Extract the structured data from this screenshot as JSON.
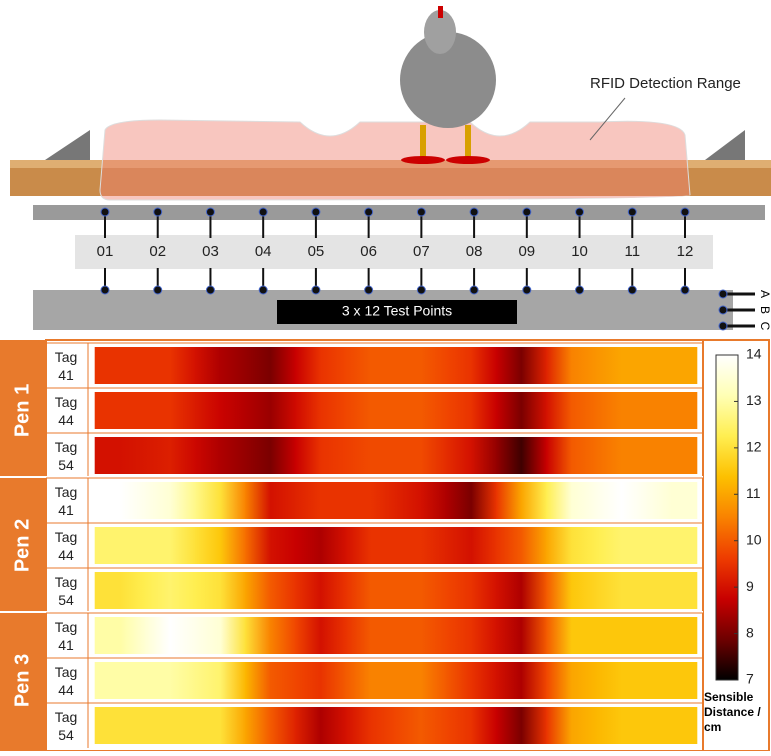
{
  "diagram": {
    "annotation": "RFID Detection Range",
    "caption": "3 x 12 Test Points",
    "rows": [
      "A",
      "B",
      "C"
    ]
  },
  "chart_data": {
    "type": "heatmap",
    "categories": [
      "01",
      "02",
      "03",
      "04",
      "05",
      "06",
      "07",
      "08",
      "09",
      "10",
      "11",
      "12"
    ],
    "groups": [
      {
        "name": "Pen 1",
        "rows": [
          {
            "name": "Tag 41",
            "values": [
              9.5,
              9.5,
              8.5,
              8,
              9.5,
              10,
              10,
              9.5,
              8,
              10.5,
              11,
              11
            ]
          },
          {
            "name": "Tag 44",
            "values": [
              9.5,
              9.5,
              8.8,
              8.3,
              9.5,
              10,
              10,
              9.5,
              8,
              10,
              10.5,
              10.5
            ]
          },
          {
            "name": "Tag 54",
            "values": [
              9,
              9.2,
              8.5,
              8,
              9.5,
              9.8,
              9.8,
              9,
              7.5,
              10,
              10.5,
              10.5
            ]
          }
        ]
      },
      {
        "name": "Pen 2",
        "rows": [
          {
            "name": "Tag 41",
            "values": [
              14,
              13.5,
              12,
              9,
              9.5,
              9.5,
              9,
              8,
              11,
              13.5,
              14,
              13.5
            ]
          },
          {
            "name": "Tag 44",
            "values": [
              12.5,
              12.5,
              11.5,
              9,
              8.5,
              9.5,
              9.5,
              9,
              10,
              12,
              12.5,
              12.5
            ]
          },
          {
            "name": "Tag 54",
            "values": [
              12,
              12.5,
              12,
              10,
              9,
              10,
              10,
              9.5,
              8.5,
              11.5,
              12,
              12
            ]
          }
        ]
      },
      {
        "name": "Pen 3",
        "rows": [
          {
            "name": "Tag 41",
            "values": [
              13,
              14,
              13.5,
              10.5,
              9,
              10,
              10,
              9.5,
              8.5,
              11.5,
              11.5,
              11.5
            ]
          },
          {
            "name": "Tag 44",
            "values": [
              13,
              13,
              12.5,
              10,
              9.5,
              10.5,
              10.5,
              9.5,
              8.5,
              11,
              11.5,
              11.5
            ]
          },
          {
            "name": "Tag 54",
            "values": [
              12,
              12,
              12,
              10,
              8.5,
              9.5,
              10,
              9.5,
              8,
              11,
              11.5,
              11.5
            ]
          }
        ]
      }
    ],
    "clim": [
      7,
      14
    ],
    "cticks": [
      7,
      8,
      9,
      10,
      11,
      12,
      13,
      14
    ],
    "colormap": [
      "#000000",
      "#6e0000",
      "#c80000",
      "#ee3c00",
      "#f98200",
      "#fdc000",
      "#ffee50",
      "#ffffb4",
      "#ffffff"
    ],
    "colorbar_label": "Sensible Distance / cm"
  }
}
